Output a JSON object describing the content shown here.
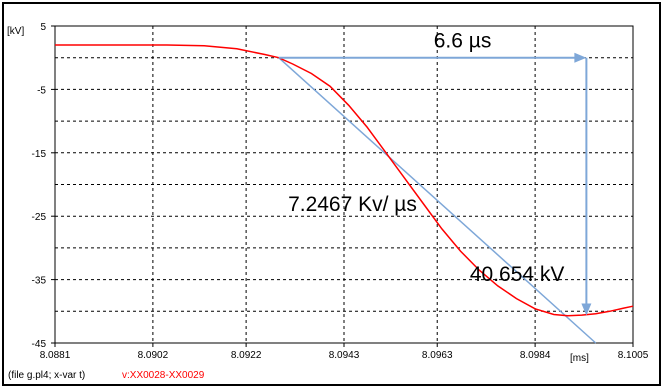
{
  "chart_data": {
    "type": "line",
    "ylabel": "[kV]",
    "xlabel": "[ms]",
    "xlim": [
      8.0881,
      8.1005
    ],
    "ylim": [
      -45,
      5
    ],
    "grid": true,
    "xticks": [
      8.0881,
      8.0902,
      8.0922,
      8.0943,
      8.0963,
      8.0984,
      8.1005
    ],
    "xtick_labels": [
      "8.0881",
      "8.0902",
      "8.0922",
      "8.0943",
      "8.0963",
      "8.0984",
      "8.1005"
    ],
    "yticks": [
      5,
      -5,
      -15,
      -25,
      -35,
      -45
    ],
    "ytick_labels": [
      "5",
      "-5",
      "-15",
      "-25",
      "-35",
      "-45"
    ],
    "series": [
      {
        "color": "#ff0000",
        "x": [
          8.0881,
          8.0895,
          8.0905,
          8.0913,
          8.092,
          8.0926,
          8.0929,
          8.0932,
          8.0936,
          8.094,
          8.0944,
          8.0948,
          8.0952,
          8.0956,
          8.096,
          8.0964,
          8.0968,
          8.0972,
          8.0976,
          8.098,
          8.0984,
          8.0988,
          8.0991,
          8.0994,
          8.0997,
          8.1,
          8.1003,
          8.1005
        ],
        "y": [
          2.0,
          2.0,
          2.0,
          1.9,
          1.4,
          0.5,
          0.0,
          -1.0,
          -2.5,
          -4.5,
          -7.5,
          -11.0,
          -15.0,
          -19.0,
          -23.0,
          -27.0,
          -30.5,
          -33.5,
          -36.0,
          -38.0,
          -39.6,
          -40.5,
          -40.7,
          -40.6,
          -40.4,
          -40.0,
          -39.5,
          -39.2
        ]
      }
    ],
    "tangent": {
      "color": "#7ea7d8",
      "x": [
        8.0929,
        8.0997
      ],
      "y": [
        0.0,
        -45.0
      ]
    },
    "annotations": [
      {
        "text": "6.6 µs",
        "kind": "horizontal-arrow",
        "x1": 8.0929,
        "x2": 8.0995,
        "y": 0.0
      },
      {
        "text": "40.654 kV",
        "kind": "vertical-arrow",
        "x": 8.0995,
        "y1": 0.0,
        "y2": -40.654
      },
      {
        "text": "7.2467 Kv/ µs",
        "kind": "label",
        "x": 8.0931,
        "y": -24.2
      },
      {
        "text": "40.654 kV",
        "kind": "label",
        "x": 8.097,
        "y": -35.2
      }
    ]
  },
  "footer": {
    "file_info": "(file g.pl4; x-var t)",
    "variable": "v:XX0028-XX0029"
  }
}
